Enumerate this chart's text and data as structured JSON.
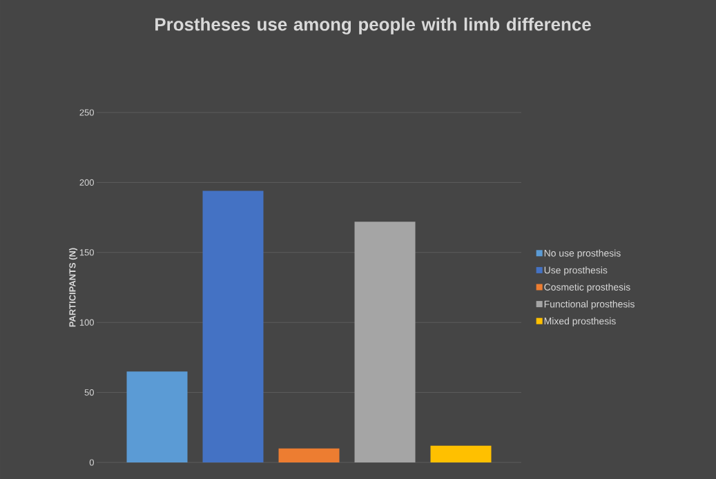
{
  "chart_data": {
    "type": "bar",
    "title": "Prostheses use among people with limb difference",
    "ylabel": "PARTICIPANTS (N)",
    "categories": [
      null
    ],
    "series": [
      {
        "name": "No use prosthesis",
        "color": "#5b9bd5",
        "values": [
          65
        ]
      },
      {
        "name": "Use prosthesis",
        "color": "#4472c4",
        "values": [
          194
        ]
      },
      {
        "name": "Cosmetic prosthesis",
        "color": "#ed7d31",
        "values": [
          10
        ]
      },
      {
        "name": "Functional prosthesis",
        "color": "#a5a5a5",
        "values": [
          172
        ]
      },
      {
        "name": "Mixed prosthesis",
        "color": "#ffc000",
        "values": [
          12
        ]
      }
    ],
    "ylim": [
      0,
      250
    ],
    "yticks": [
      0,
      50,
      100,
      150,
      200,
      250
    ],
    "grid": "y",
    "legend": "right",
    "tick_labels": "y"
  }
}
